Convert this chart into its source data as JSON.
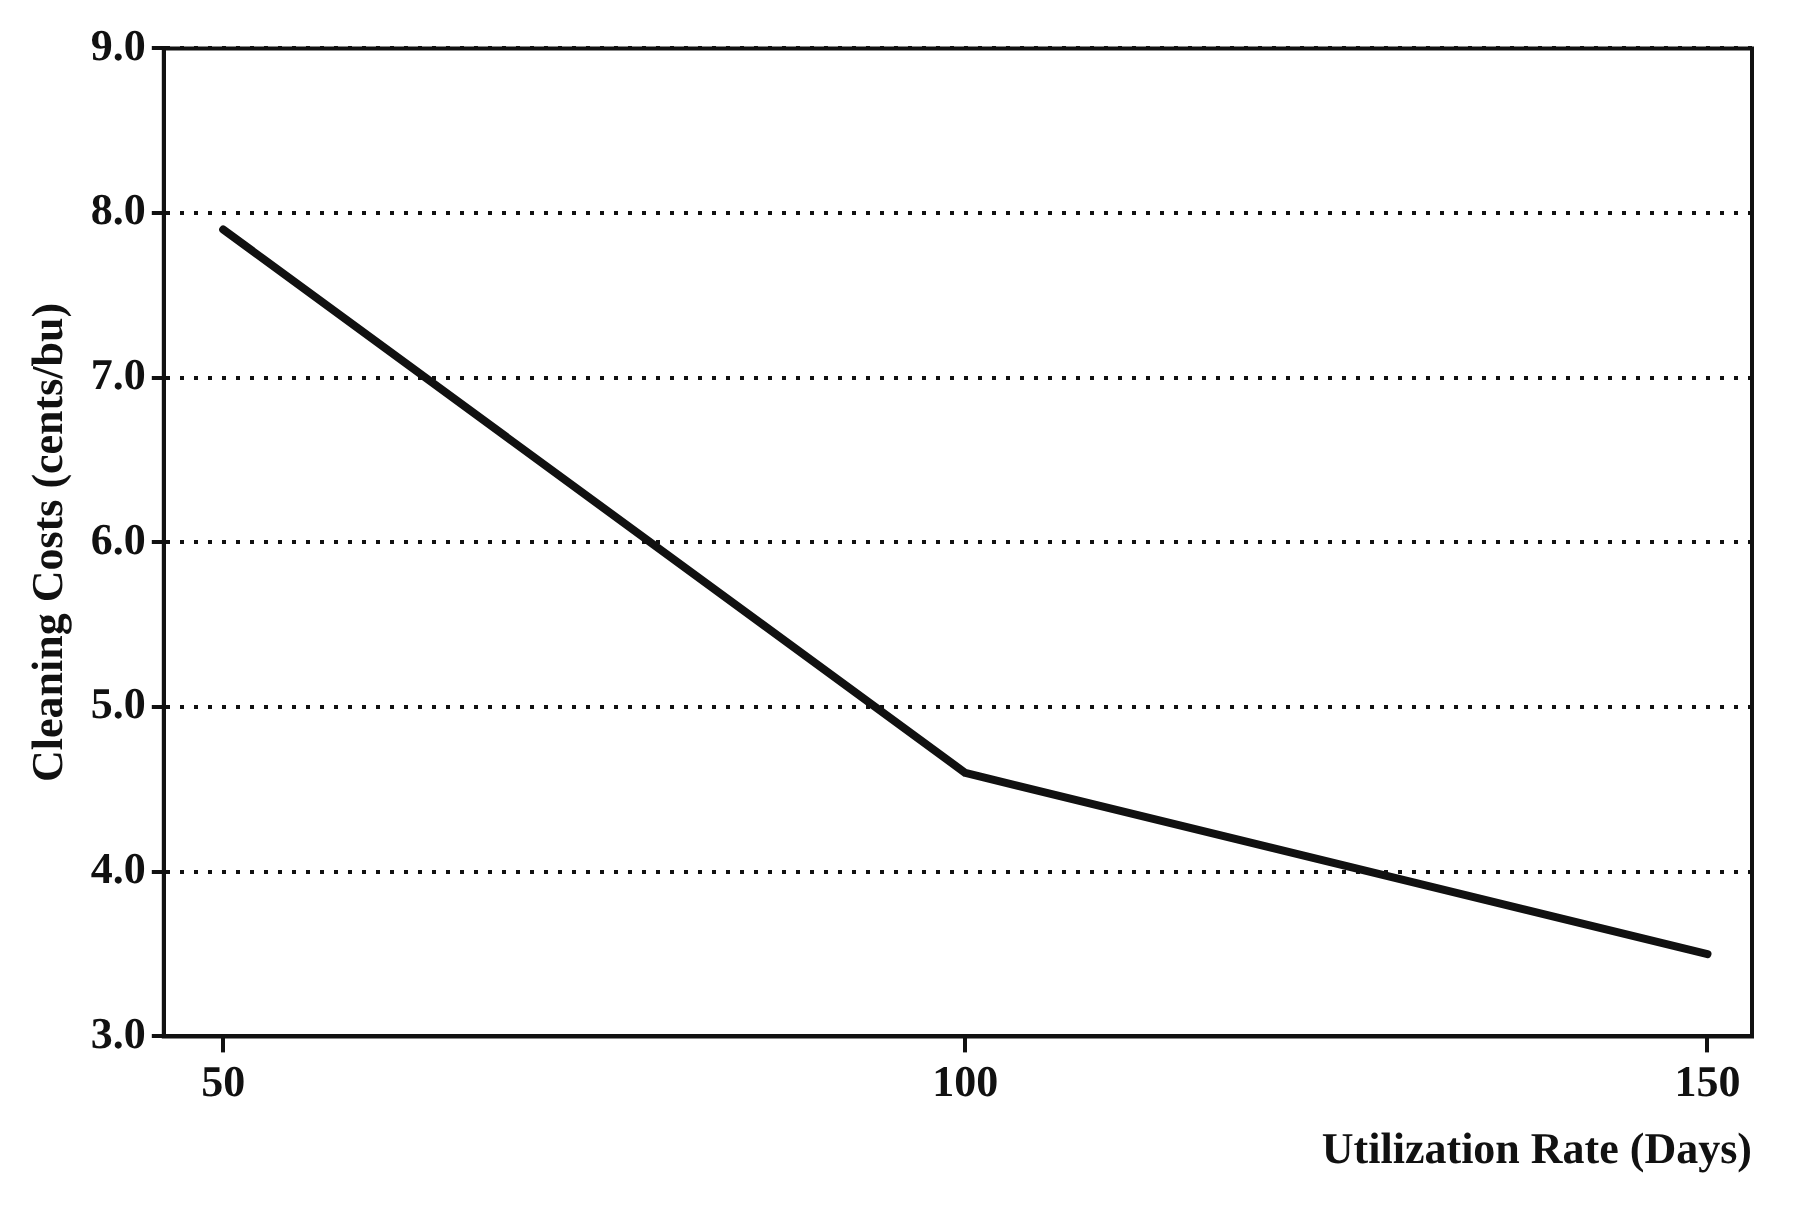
{
  "chart_data": {
    "type": "line",
    "xlabel": "Utilization Rate (Days)",
    "ylabel": "Cleaning Costs (cents/bu)",
    "x": [
      50,
      100,
      150
    ],
    "series": [
      {
        "color": "#111111",
        "values": [
          7.9,
          4.6,
          3.5
        ]
      }
    ],
    "xlim": [
      46,
      153
    ],
    "xticks": [
      50,
      100,
      150
    ],
    "ylim": [
      3,
      9
    ],
    "yticks": [
      {
        "value": 3,
        "label": "3.0"
      },
      {
        "value": 4,
        "label": "4.0"
      },
      {
        "value": 5,
        "label": "5.0"
      },
      {
        "value": 6,
        "label": "6.0"
      },
      {
        "value": 7,
        "label": "7.0"
      },
      {
        "value": 8,
        "label": "8.0"
      },
      {
        "value": 9,
        "label": "9.0"
      }
    ],
    "grid": "y",
    "legend": false,
    "marker": "none",
    "line_style": "solid"
  }
}
